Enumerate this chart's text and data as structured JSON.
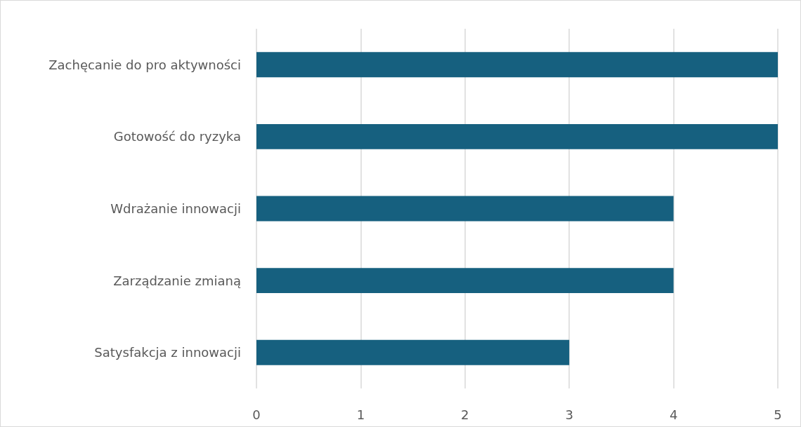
{
  "chart_data": {
    "type": "bar",
    "orientation": "horizontal",
    "categories": [
      "Zachęcanie do pro aktywności",
      "Gotowość do ryzyka",
      "Wdrażanie innowacji",
      "Zarządzanie zmianą",
      "Satysfakcja z innowacji"
    ],
    "values": [
      5,
      5,
      4,
      4,
      3
    ],
    "color": "#16607f",
    "xlim": [
      0,
      5
    ],
    "xticks": [
      0,
      1,
      2,
      3,
      4,
      5
    ],
    "grid": "x"
  }
}
